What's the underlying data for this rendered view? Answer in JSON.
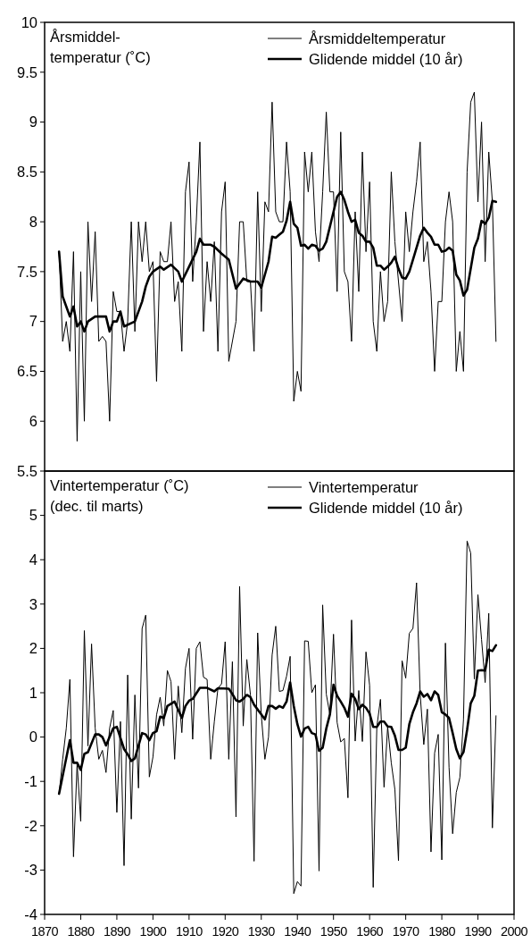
{
  "chart_data": [
    {
      "type": "line",
      "title": "Årsmiddel-\ntemperatur (˚C)",
      "xlim": [
        1870,
        2000
      ],
      "ylim": [
        5.5,
        10
      ],
      "yticks": [
        5.5,
        6,
        6.5,
        7,
        7.5,
        8,
        8.5,
        9,
        9.5,
        10
      ],
      "tick_labels": "y",
      "legend": "top right",
      "grid": false,
      "marker": "none",
      "series": [
        {
          "name": "Årsmiddeltemperatur",
          "color": "#000000",
          "x": [
            1874,
            1875,
            1876,
            1877,
            1878,
            1879,
            1880,
            1881,
            1882,
            1883,
            1884,
            1885,
            1886,
            1887,
            1888,
            1889,
            1890,
            1891,
            1892,
            1893,
            1894,
            1895,
            1896,
            1897,
            1898,
            1899,
            1900,
            1901,
            1902,
            1903,
            1904,
            1905,
            1906,
            1907,
            1908,
            1909,
            1910,
            1911,
            1912,
            1913,
            1914,
            1915,
            1916,
            1917,
            1918,
            1919,
            1920,
            1921,
            1922,
            1923,
            1924,
            1925,
            1926,
            1927,
            1928,
            1929,
            1930,
            1931,
            1932,
            1933,
            1934,
            1935,
            1936,
            1937,
            1938,
            1939,
            1940,
            1941,
            1942,
            1943,
            1944,
            1945,
            1946,
            1947,
            1948,
            1949,
            1950,
            1951,
            1952,
            1953,
            1954,
            1955,
            1956,
            1957,
            1958,
            1959,
            1960,
            1961,
            1962,
            1963,
            1964,
            1965,
            1966,
            1967,
            1968,
            1969,
            1970,
            1971,
            1972,
            1973,
            1974,
            1975,
            1976,
            1977,
            1978,
            1979,
            1980,
            1981,
            1982,
            1983,
            1984,
            1985,
            1986,
            1987,
            1988,
            1989,
            1990,
            1991,
            1992,
            1993,
            1994,
            1995
          ],
          "values": [
            7.7,
            6.8,
            7.0,
            6.7,
            7.7,
            5.8,
            7.5,
            6.0,
            8.0,
            7.2,
            7.9,
            6.8,
            6.85,
            6.8,
            6.0,
            7.3,
            7.1,
            7.1,
            6.7,
            7.0,
            8.0,
            6.9,
            8.0,
            7.6,
            8.0,
            7.5,
            7.6,
            6.4,
            7.7,
            7.6,
            7.6,
            8.0,
            7.2,
            7.4,
            6.7,
            8.3,
            8.6,
            7.4,
            8.0,
            8.8,
            6.9,
            7.6,
            7.2,
            7.8,
            6.7,
            8.1,
            8.4,
            6.6,
            6.8,
            7.0,
            8.0,
            8.0,
            7.4,
            7.4,
            6.7,
            8.3,
            7.1,
            8.2,
            8.1,
            9.2,
            8.1,
            8.0,
            8.0,
            8.8,
            8.3,
            6.2,
            6.5,
            6.3,
            8.7,
            8.3,
            8.7,
            7.9,
            7.6,
            8.3,
            9.1,
            8.3,
            8.3,
            7.3,
            8.9,
            7.5,
            7.4,
            6.8,
            8.1,
            7.3,
            8.7,
            7.7,
            8.4,
            7.0,
            6.7,
            7.5,
            7.0,
            7.2,
            8.5,
            7.8,
            7.4,
            7.0,
            8.1,
            7.7,
            8.1,
            8.4,
            8.8,
            7.6,
            7.8,
            7.3,
            6.5,
            7.2,
            7.2,
            8.0,
            8.3,
            8.0,
            6.5,
            6.9,
            6.5,
            8.5,
            9.2,
            9.3,
            8.2,
            9.0,
            7.6,
            8.7,
            8.2,
            6.8
          ]
        },
        {
          "name": "Glidende middel (10 år)",
          "color": "#000000",
          "x": [
            1874,
            1875,
            1876,
            1877,
            1878,
            1879,
            1880,
            1881,
            1882,
            1884,
            1887,
            1888,
            1889,
            1890,
            1891,
            1892,
            1895,
            1897,
            1898,
            1899,
            1900,
            1902,
            1903,
            1905,
            1907,
            1908,
            1910,
            1912,
            1913,
            1914,
            1916,
            1917,
            1919,
            1921,
            1923,
            1925,
            1927,
            1929,
            1930,
            1931,
            1932,
            1933,
            1934,
            1935,
            1936,
            1937,
            1938,
            1939,
            1940,
            1941,
            1942,
            1943,
            1944,
            1945,
            1946,
            1947,
            1948,
            1949,
            1950,
            1951,
            1952,
            1953,
            1954,
            1955,
            1956,
            1957,
            1958,
            1959,
            1960,
            1961,
            1962,
            1963,
            1964,
            1965,
            1966,
            1967,
            1968,
            1969,
            1970,
            1971,
            1972,
            1973,
            1974,
            1975,
            1976,
            1977,
            1978,
            1979,
            1980,
            1981,
            1982,
            1983,
            1984,
            1985,
            1986,
            1987,
            1988,
            1989,
            1990,
            1991,
            1992,
            1993,
            1994,
            1995
          ],
          "values": [
            7.7,
            7.25,
            7.15,
            7.05,
            7.15,
            6.95,
            7.0,
            6.9,
            7.0,
            7.05,
            7.05,
            6.9,
            7.0,
            7.0,
            7.1,
            6.95,
            7.0,
            7.2,
            7.35,
            7.45,
            7.5,
            7.55,
            7.52,
            7.57,
            7.5,
            7.4,
            7.55,
            7.7,
            7.83,
            7.77,
            7.77,
            7.75,
            7.68,
            7.62,
            7.33,
            7.43,
            7.4,
            7.4,
            7.34,
            7.47,
            7.6,
            7.85,
            7.84,
            7.87,
            7.9,
            8.01,
            8.2,
            7.98,
            7.94,
            7.76,
            7.77,
            7.73,
            7.77,
            7.76,
            7.71,
            7.73,
            7.8,
            7.95,
            8.1,
            8.25,
            8.3,
            8.22,
            8.1,
            8.0,
            8.02,
            7.89,
            7.86,
            7.8,
            7.8,
            7.74,
            7.56,
            7.56,
            7.52,
            7.55,
            7.59,
            7.65,
            7.53,
            7.44,
            7.43,
            7.5,
            7.62,
            7.74,
            7.86,
            7.94,
            7.89,
            7.85,
            7.77,
            7.77,
            7.7,
            7.71,
            7.74,
            7.71,
            7.47,
            7.41,
            7.26,
            7.32,
            7.53,
            7.74,
            7.83,
            8.01,
            7.98,
            8.04,
            8.21,
            8.2
          ]
        }
      ]
    },
    {
      "type": "line",
      "title": "Vintertemperatur (˚C)\n(dec. til marts)",
      "xlim": [
        1870,
        2000
      ],
      "xticks": [
        1870,
        1880,
        1890,
        1900,
        1910,
        1920,
        1930,
        1940,
        1950,
        1960,
        1970,
        1980,
        1990,
        2000
      ],
      "ylim": [
        -4,
        6
      ],
      "yticks": [
        -4,
        -3,
        -2,
        -1,
        0,
        1,
        2,
        3,
        4,
        5
      ],
      "legend": "top right",
      "grid": false,
      "marker": "none",
      "series": [
        {
          "name": "Vintertemperatur",
          "color": "#000000",
          "x": [
            1874,
            1875,
            1876,
            1877,
            1878,
            1879,
            1880,
            1881,
            1882,
            1883,
            1884,
            1885,
            1886,
            1887,
            1888,
            1889,
            1890,
            1891,
            1892,
            1893,
            1894,
            1895,
            1896,
            1897,
            1898,
            1899,
            1900,
            1901,
            1902,
            1903,
            1904,
            1905,
            1906,
            1907,
            1908,
            1909,
            1910,
            1911,
            1912,
            1913,
            1914,
            1915,
            1916,
            1917,
            1918,
            1919,
            1920,
            1921,
            1922,
            1923,
            1924,
            1925,
            1926,
            1927,
            1928,
            1929,
            1930,
            1931,
            1932,
            1933,
            1934,
            1935,
            1936,
            1937,
            1938,
            1939,
            1940,
            1941,
            1942,
            1943,
            1944,
            1945,
            1946,
            1947,
            1948,
            1949,
            1950,
            1951,
            1952,
            1953,
            1954,
            1955,
            1956,
            1957,
            1958,
            1959,
            1960,
            1961,
            1962,
            1963,
            1964,
            1965,
            1966,
            1967,
            1968,
            1969,
            1970,
            1971,
            1972,
            1973,
            1974,
            1975,
            1976,
            1977,
            1978,
            1979,
            1980,
            1981,
            1982,
            1983,
            1984,
            1985,
            1986,
            1987,
            1988,
            1989,
            1990,
            1991,
            1992,
            1993,
            1994,
            1995
          ],
          "values": [
            -1.28,
            -0.5,
            0.2,
            1.3,
            -2.7,
            -0.6,
            -1.9,
            2.4,
            -0.2,
            2.1,
            0.2,
            -0.5,
            -0.3,
            -0.8,
            0.2,
            0.6,
            -1.7,
            0.35,
            -2.9,
            1.4,
            -1.85,
            0.95,
            -1.15,
            2.45,
            2.75,
            -0.9,
            -0.45,
            0.5,
            0.9,
            0.25,
            1.5,
            1.25,
            -0.5,
            1.15,
            0.1,
            1.55,
            2.0,
            -0.05,
            2.0,
            2.15,
            1.35,
            1.3,
            -0.5,
            0.35,
            1.1,
            1.2,
            2.15,
            -0.5,
            1.7,
            -1.8,
            3.4,
            0.25,
            1.75,
            0.95,
            -2.8,
            2.35,
            0.5,
            -0.5,
            0.0,
            1.85,
            2.5,
            1.03,
            1.05,
            1.37,
            1.82,
            -3.53,
            -3.26,
            -3.36,
            2.17,
            2.16,
            1.0,
            1.18,
            -3.02,
            2.98,
            0.97,
            0.51,
            2.32,
            0.33,
            -0.11,
            -0.03,
            -1.37,
            2.64,
            -0.09,
            1.05,
            -0.1,
            1.92,
            1.17,
            -3.39,
            0.23,
            0.85,
            -1.13,
            0.23,
            -0.58,
            -1.18,
            -2.79,
            1.72,
            1.33,
            2.34,
            2.45,
            3.48,
            0.97,
            -0.17,
            0.63,
            -2.59,
            -0.36,
            0.06,
            -2.77,
            2.12,
            -0.68,
            -2.18,
            -1.25,
            -0.91,
            0.4,
            4.42,
            4.15,
            1.31,
            3.21,
            2.2,
            1.23,
            2.79,
            -2.05,
            0.48
          ]
        },
        {
          "name": "Glidende middel (10 år)",
          "color": "#000000",
          "x": [
            1874,
            1877,
            1878,
            1879,
            1880,
            1881,
            1882,
            1884,
            1885,
            1886,
            1887,
            1889,
            1890,
            1892,
            1893,
            1894,
            1895,
            1897,
            1898,
            1899,
            1900,
            1901,
            1902,
            1903,
            1904,
            1906,
            1908,
            1909,
            1910,
            1911,
            1913,
            1915,
            1917,
            1918,
            1921,
            1922,
            1923,
            1924,
            1925,
            1926,
            1927,
            1928,
            1930,
            1931,
            1932,
            1933,
            1934,
            1935,
            1936,
            1937,
            1938,
            1939,
            1940,
            1941,
            1942,
            1943,
            1944,
            1945,
            1946,
            1947,
            1948,
            1949,
            1950,
            1951,
            1952,
            1953,
            1954,
            1955,
            1956,
            1957,
            1958,
            1959,
            1960,
            1961,
            1962,
            1963,
            1964,
            1965,
            1966,
            1967,
            1968,
            1969,
            1970,
            1971,
            1972,
            1973,
            1974,
            1975,
            1976,
            1977,
            1978,
            1979,
            1980,
            1981,
            1982,
            1983,
            1984,
            1985,
            1986,
            1987,
            1988,
            1989,
            1990,
            1991,
            1992,
            1993,
            1994,
            1995
          ],
          "values": [
            -1.28,
            -0.07,
            -0.58,
            -0.58,
            -0.74,
            -0.38,
            -0.34,
            0.06,
            0.06,
            0.0,
            -0.19,
            0.2,
            0.23,
            -0.27,
            -0.39,
            -0.54,
            -0.48,
            0.09,
            0.06,
            -0.07,
            0.09,
            0.13,
            0.46,
            0.43,
            0.7,
            0.8,
            0.43,
            0.7,
            0.82,
            0.86,
            1.11,
            1.11,
            1.03,
            1.1,
            1.09,
            0.97,
            0.83,
            0.8,
            0.86,
            0.95,
            0.9,
            0.73,
            0.51,
            0.4,
            0.7,
            0.7,
            0.64,
            0.7,
            0.66,
            0.8,
            1.23,
            0.7,
            0.29,
            0.01,
            0.19,
            0.23,
            0.09,
            0.06,
            -0.31,
            -0.24,
            0.19,
            0.51,
            1.18,
            0.93,
            0.8,
            0.66,
            0.46,
            0.98,
            0.86,
            0.63,
            0.73,
            0.66,
            0.53,
            0.23,
            0.23,
            0.35,
            0.35,
            0.24,
            0.23,
            0.03,
            -0.29,
            -0.29,
            -0.24,
            0.29,
            0.56,
            0.76,
            1.03,
            0.91,
            0.97,
            0.83,
            1.03,
            0.95,
            0.56,
            0.51,
            0.43,
            0.09,
            -0.27,
            -0.48,
            -0.34,
            0.16,
            0.76,
            0.93,
            1.5,
            1.51,
            1.5,
            1.97,
            1.94,
            2.07
          ]
        }
      ]
    }
  ]
}
